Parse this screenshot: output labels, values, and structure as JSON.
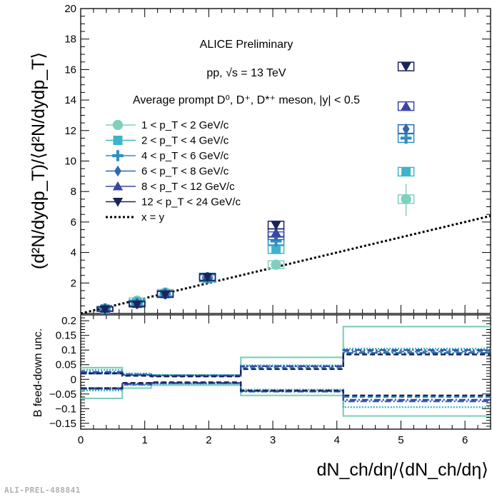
{
  "watermark": "ALI-PREL-488841",
  "annotations": {
    "line1": "ALICE Preliminary",
    "line2": "pp, √s = 13 TeV",
    "line3": "Average prompt D⁰, D⁺, D*⁺ meson, |y| < 0.5"
  },
  "top_ylabel": "(d²N/dydp_T)/⟨d²N/dydp_T⟩",
  "bottom_ylabel": "B feed-down unc.",
  "xlabel": "dN_ch/dη/⟨dN_ch/dη⟩",
  "colors": {
    "pt1": "#7fd0bd",
    "pt2": "#3fb4c8",
    "pt3": "#2e8fc2",
    "pt4": "#2d6aae",
    "pt5": "#3a46a5",
    "pt6": "#1c2457",
    "diag": "#000000"
  },
  "chart_data": [
    {
      "type": "scatter",
      "panel": "top",
      "xlim": [
        0,
        6.4
      ],
      "ylim": [
        0,
        20
      ],
      "yticks": [
        2,
        4,
        6,
        8,
        10,
        12,
        14,
        16,
        18,
        20
      ],
      "xticks": [
        0,
        1,
        2,
        3,
        4,
        5,
        6
      ],
      "legend_position": "left",
      "reference_line": {
        "label": "x = y",
        "style": "dotted"
      },
      "series": [
        {
          "name": "1 < p_T < 2 GeV/c",
          "marker": "circle",
          "x": [
            0.38,
            0.88,
            1.32,
            1.98,
            3.05,
            5.08
          ],
          "y": [
            0.32,
            0.85,
            1.38,
            2.3,
            3.2,
            7.5
          ]
        },
        {
          "name": "2 < p_T < 4 GeV/c",
          "marker": "square",
          "x": [
            0.38,
            0.88,
            1.32,
            1.98,
            3.05,
            5.08
          ],
          "y": [
            0.3,
            0.72,
            1.3,
            2.3,
            4.2,
            9.3
          ]
        },
        {
          "name": "4 < p_T < 6 GeV/c",
          "marker": "cross",
          "x": [
            0.38,
            0.88,
            1.32,
            1.98,
            3.05,
            5.08
          ],
          "y": [
            0.3,
            0.68,
            1.3,
            2.35,
            4.75,
            11.5
          ]
        },
        {
          "name": "6 < p_T < 8 GeV/c",
          "marker": "diamond",
          "x": [
            0.38,
            0.88,
            1.32,
            1.98,
            3.05,
            5.08
          ],
          "y": [
            0.3,
            0.65,
            1.28,
            2.35,
            5.1,
            12.1
          ]
        },
        {
          "name": "8 < p_T < 12 GeV/c",
          "marker": "triangle-up",
          "x": [
            0.38,
            0.88,
            1.32,
            1.98,
            3.05,
            5.08
          ],
          "y": [
            0.3,
            0.62,
            1.28,
            2.4,
            5.3,
            13.6
          ]
        },
        {
          "name": "12 < p_T < 24 GeV/c",
          "marker": "triangle-down",
          "x": [
            0.38,
            0.88,
            1.32,
            1.98,
            3.05,
            5.08
          ],
          "y": [
            0.28,
            0.6,
            1.25,
            2.4,
            5.8,
            16.2
          ]
        }
      ]
    },
    {
      "type": "line",
      "panel": "bottom",
      "xlim": [
        0,
        6.4
      ],
      "ylim": [
        -0.17,
        0.22
      ],
      "yticks": [
        -0.15,
        -0.1,
        -0.05,
        0,
        0.05,
        0.1,
        0.15,
        0.2
      ],
      "yticklabels": [
        "−0.15",
        "−0.1",
        "−0.05",
        "0",
        "0.05",
        "0.1",
        "0.15",
        "0.2"
      ],
      "xticks": [
        0,
        1,
        2,
        3,
        4,
        5,
        6
      ],
      "bin_edges": [
        0,
        0.65,
        1.1,
        2.5,
        4.1,
        6.4
      ],
      "series": [
        {
          "name": "1 < p_T < 2 GeV/c",
          "style": "solid",
          "upper": [
            0.04,
            0.015,
            0.015,
            0.075,
            0.18
          ],
          "lower": [
            -0.065,
            -0.03,
            -0.02,
            -0.055,
            -0.125
          ]
        },
        {
          "name": "2 < p_T < 4 GeV/c",
          "style": "dotted",
          "upper": [
            0.032,
            0.02,
            0.015,
            0.048,
            0.105
          ],
          "lower": [
            -0.038,
            -0.02,
            -0.015,
            -0.035,
            -0.095
          ]
        },
        {
          "name": "4 < p_T < 6 GeV/c",
          "style": "dashed",
          "upper": [
            0.022,
            0.018,
            0.012,
            0.04,
            0.095
          ],
          "lower": [
            -0.032,
            -0.018,
            -0.013,
            -0.04,
            -0.06
          ]
        },
        {
          "name": "6 < p_T < 8 GeV/c",
          "style": "dashdot",
          "upper": [
            0.02,
            0.015,
            0.012,
            0.045,
            0.09
          ],
          "lower": [
            -0.03,
            -0.015,
            -0.012,
            -0.042,
            -0.075
          ]
        },
        {
          "name": "8 < p_T < 12 GeV/c",
          "style": "dashdot",
          "upper": [
            0.025,
            0.015,
            0.013,
            0.045,
            0.1
          ],
          "lower": [
            -0.032,
            -0.016,
            -0.013,
            -0.04,
            -0.07
          ]
        },
        {
          "name": "12 < p_T < 24 GeV/c",
          "style": "dashed",
          "upper": [
            0.02,
            0.012,
            0.01,
            0.035,
            0.085
          ],
          "lower": [
            -0.03,
            -0.012,
            -0.01,
            -0.038,
            -0.055
          ]
        }
      ]
    }
  ]
}
